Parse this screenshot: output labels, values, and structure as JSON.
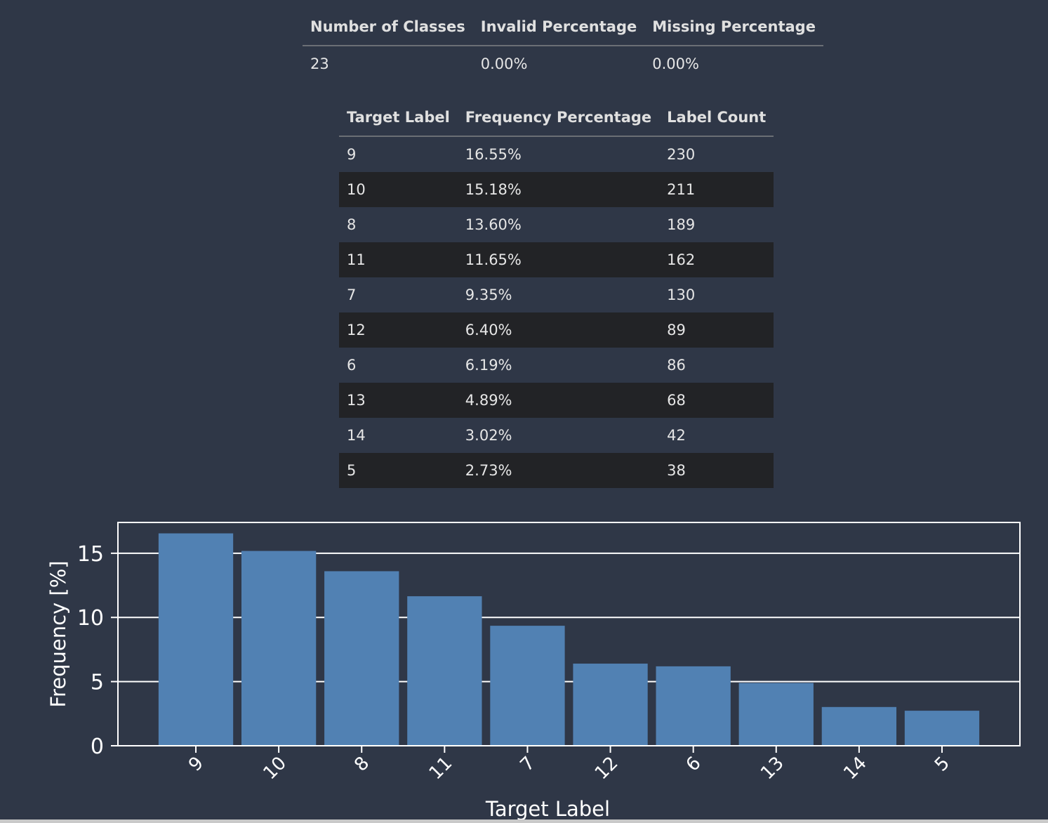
{
  "summary_table": {
    "headers": [
      "Number of Classes",
      "Invalid Percentage",
      "Missing Percentage"
    ],
    "row": [
      "23",
      "0.00%",
      "0.00%"
    ]
  },
  "frequency_table": {
    "headers": [
      "Target Label",
      "Frequency Percentage",
      "Label Count"
    ],
    "rows": [
      [
        "9",
        "16.55%",
        "230"
      ],
      [
        "10",
        "15.18%",
        "211"
      ],
      [
        "8",
        "13.60%",
        "189"
      ],
      [
        "11",
        "11.65%",
        "162"
      ],
      [
        "7",
        "9.35%",
        "130"
      ],
      [
        "12",
        "6.40%",
        "89"
      ],
      [
        "6",
        "6.19%",
        "86"
      ],
      [
        "13",
        "4.89%",
        "68"
      ],
      [
        "14",
        "3.02%",
        "42"
      ],
      [
        "5",
        "2.73%",
        "38"
      ]
    ]
  },
  "chart_data": {
    "type": "bar",
    "categories": [
      "9",
      "10",
      "8",
      "11",
      "7",
      "12",
      "6",
      "13",
      "14",
      "5"
    ],
    "values": [
      16.55,
      15.18,
      13.6,
      11.65,
      9.35,
      6.4,
      6.19,
      4.89,
      3.02,
      2.73
    ],
    "xlabel": "Target Label",
    "ylabel": "Frequency [%]",
    "ylim": [
      0,
      17.4
    ],
    "yticks": [
      0,
      5,
      10,
      15
    ],
    "grid": "horizontal",
    "x_tick_rotation": 45,
    "bar_color": "#5181b3",
    "background": "#2f3747",
    "axis_color": "#ffffff"
  }
}
